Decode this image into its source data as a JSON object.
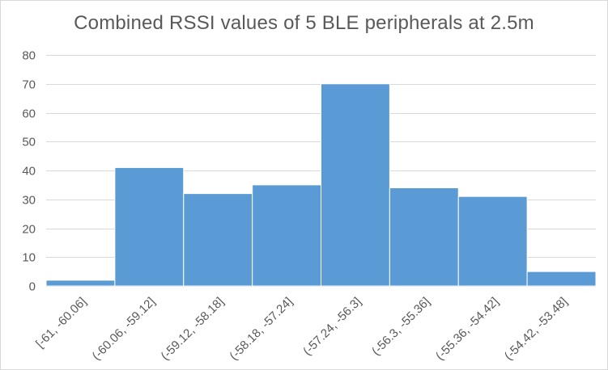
{
  "chart_data": {
    "type": "bar",
    "title": "Combined RSSI values of 5 BLE peripherals at 2.5m",
    "xlabel": "",
    "ylabel": "",
    "ylim": [
      0,
      80
    ],
    "yticks": [
      0,
      10,
      20,
      30,
      40,
      50,
      60,
      70,
      80
    ],
    "grid": true,
    "legend": "none",
    "categories": [
      "[-61, -60.06]",
      "(-60.06, -59.12]",
      "(-59.12, -58.18]",
      "(-58.18, -57.24]",
      "(-57.24, -56.3]",
      "(-56.3, -55.36]",
      "(-55.36, -54.42]",
      "(-54.42, -53.48]"
    ],
    "values": [
      2,
      41,
      32,
      35,
      70,
      34,
      31,
      5
    ],
    "colors": {
      "bar": "#5b9bd5",
      "bar_edge": "#ffffff",
      "grid": "#d9d9d9",
      "text": "#595959"
    }
  }
}
